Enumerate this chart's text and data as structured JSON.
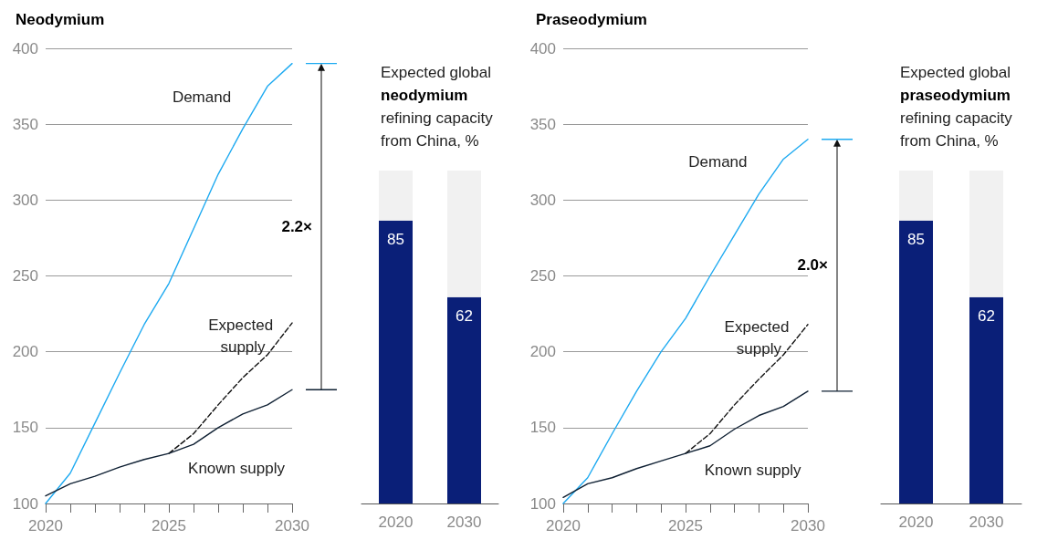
{
  "chart_data": [
    {
      "type": "line",
      "title": "Neodymium",
      "x": [
        2020,
        2021,
        2022,
        2023,
        2024,
        2025,
        2026,
        2027,
        2028,
        2029,
        2030
      ],
      "xlim": [
        2020,
        2030
      ],
      "xticks": [
        2020,
        {
          "value": 2021,
          "label": null
        },
        {
          "value": 2022,
          "label": null
        },
        {
          "value": 2023,
          "label": null
        },
        {
          "value": 2024,
          "label": null
        },
        2025,
        {
          "value": 2026,
          "label": null
        },
        {
          "value": 2027,
          "label": null
        },
        {
          "value": 2028,
          "label": null
        },
        {
          "value": 2029,
          "label": null
        },
        2030
      ],
      "ylim": [
        100,
        400
      ],
      "yticks": [
        100,
        150,
        200,
        250,
        300,
        350,
        400
      ],
      "grid": "y",
      "marker": "none",
      "annotations": [
        "2.2×"
      ],
      "series": [
        {
          "name": "Demand",
          "color": "#1eaaf1",
          "values": [
            100,
            120,
            153,
            186,
            218,
            245,
            281,
            317,
            347,
            375,
            390
          ]
        },
        {
          "name": "Expected supply",
          "color": "#111111",
          "line_style": "dashed",
          "x": [
            2025,
            2026,
            2027,
            2028,
            2029,
            2030
          ],
          "values": [
            133,
            146,
            165,
            183,
            198,
            219
          ]
        },
        {
          "name": "Known supply",
          "color": "#0f2033",
          "values": [
            105,
            113,
            118,
            124,
            129,
            133,
            139,
            150,
            159,
            165,
            175
          ]
        }
      ]
    },
    {
      "type": "bar",
      "title": "Expected global neodymium refining capacity from China, %",
      "categories": [
        "2020",
        "2030"
      ],
      "stacked": true,
      "series": [
        {
          "color": "#0a1f78",
          "values": [
            85,
            62
          ],
          "value_labels": [
            "85",
            "62"
          ]
        },
        {
          "color": "#f1f1f1",
          "values": [
            15,
            38
          ]
        }
      ]
    },
    {
      "type": "line",
      "title": "Praseodymium",
      "x": [
        2020,
        2021,
        2022,
        2023,
        2024,
        2025,
        2026,
        2027,
        2028,
        2029,
        2030
      ],
      "xlim": [
        2020,
        2030
      ],
      "xticks": [
        2020,
        {
          "value": 2021,
          "label": null
        },
        {
          "value": 2022,
          "label": null
        },
        {
          "value": 2023,
          "label": null
        },
        {
          "value": 2024,
          "label": null
        },
        2025,
        {
          "value": 2026,
          "label": null
        },
        {
          "value": 2027,
          "label": null
        },
        {
          "value": 2028,
          "label": null
        },
        {
          "value": 2029,
          "label": null
        },
        2030
      ],
      "ylim": [
        100,
        400
      ],
      "yticks": [
        100,
        150,
        200,
        250,
        300,
        350,
        400
      ],
      "grid": "y",
      "marker": "none",
      "annotations": [
        "2.0×"
      ],
      "series": [
        {
          "name": "Demand",
          "color": "#1eaaf1",
          "values": [
            100,
            117,
            146,
            174,
            200,
            222,
            250,
            277,
            304,
            327,
            340
          ]
        },
        {
          "name": "Expected supply",
          "color": "#111111",
          "line_style": "dashed",
          "x": [
            2025,
            2026,
            2027,
            2028,
            2029,
            2030
          ],
          "values": [
            133,
            146,
            165,
            182,
            198,
            218
          ]
        },
        {
          "name": "Known supply",
          "color": "#0f2033",
          "values": [
            104,
            113,
            117,
            123,
            128,
            133,
            138,
            149,
            158,
            164,
            174
          ]
        }
      ]
    },
    {
      "type": "bar",
      "title": "Expected global praseodymium refining capacity from China, %",
      "categories": [
        "2020",
        "2030"
      ],
      "stacked": true,
      "series": [
        {
          "color": "#0a1f78",
          "values": [
            85,
            62
          ],
          "value_labels": [
            "85",
            "62"
          ]
        },
        {
          "color": "#f1f1f1",
          "values": [
            15,
            38
          ]
        }
      ]
    }
  ]
}
